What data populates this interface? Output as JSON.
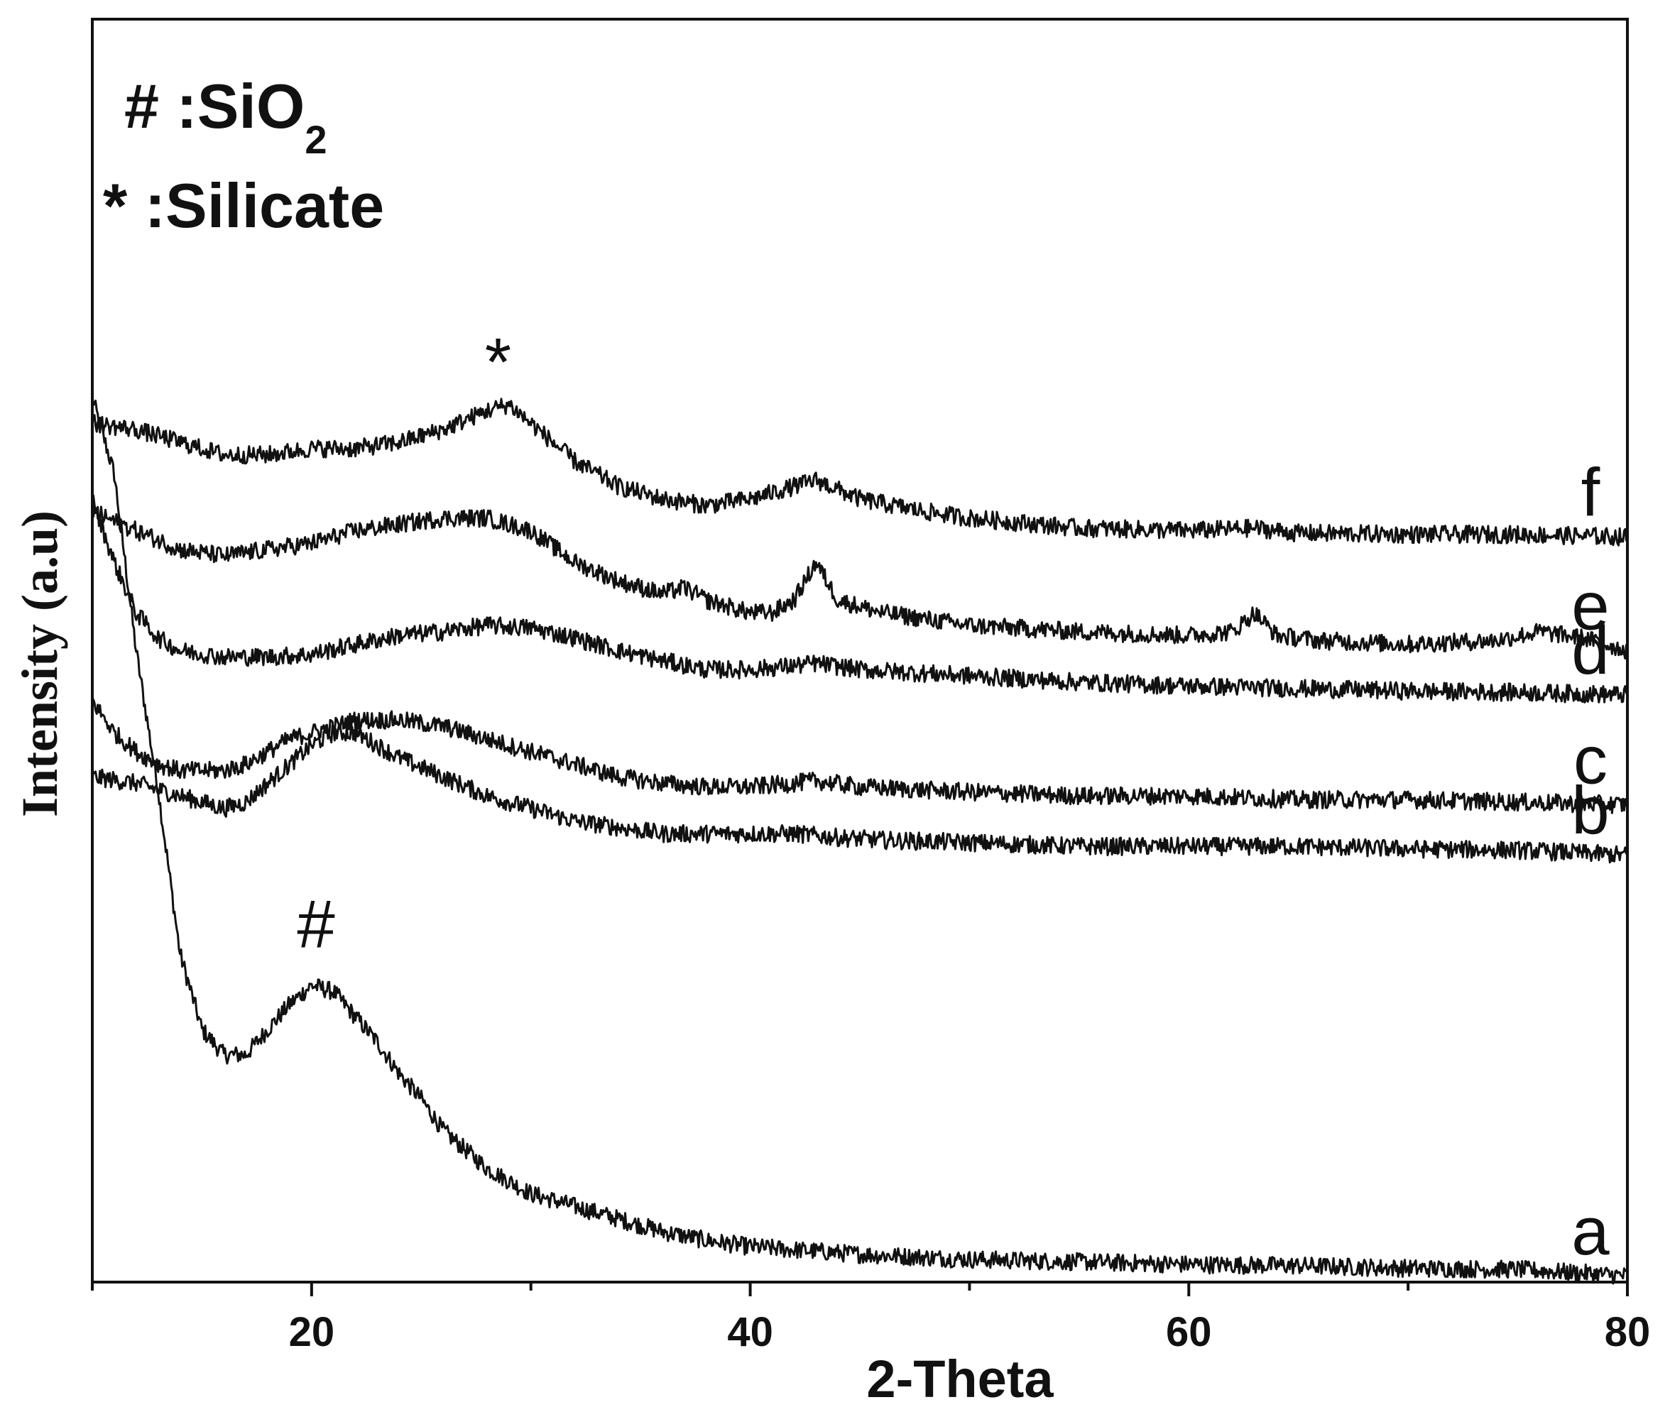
{
  "chart_data": {
    "type": "line",
    "xlabel": "2-Theta",
    "ylabel": "Intensity (a.u)",
    "xlim": [
      10,
      80
    ],
    "ylim": [
      0,
      10
    ],
    "xticks": [
      20,
      40,
      60,
      80
    ],
    "minor_xticks": [
      10,
      30,
      50,
      70
    ],
    "yticks_visible": false,
    "grid": false,
    "legend_lines": [
      {
        "symbol": "#",
        "text": " :SiO",
        "sub": "2"
      },
      {
        "symbol": "*",
        "text": " :Silicate",
        "sub": ""
      }
    ],
    "annotations": [
      {
        "text": "*",
        "x": 28.5,
        "y": 7.1
      },
      {
        "text": "#",
        "x": 20.2,
        "y": 2.65
      }
    ],
    "noise": 0.07,
    "series": [
      {
        "name": "a",
        "points": [
          [
            10,
            7.0
          ],
          [
            11,
            6.4
          ],
          [
            12,
            5.0
          ],
          [
            13,
            3.9
          ],
          [
            14,
            2.6
          ],
          [
            15,
            2.0
          ],
          [
            16,
            1.8
          ],
          [
            17,
            1.8
          ],
          [
            18,
            2.0
          ],
          [
            19,
            2.2
          ],
          [
            20,
            2.35
          ],
          [
            21,
            2.3
          ],
          [
            22,
            2.1
          ],
          [
            23,
            1.9
          ],
          [
            24,
            1.65
          ],
          [
            25,
            1.45
          ],
          [
            26,
            1.2
          ],
          [
            27,
            1.05
          ],
          [
            28,
            0.9
          ],
          [
            29,
            0.8
          ],
          [
            30,
            0.7
          ],
          [
            32,
            0.6
          ],
          [
            34,
            0.5
          ],
          [
            36,
            0.4
          ],
          [
            38,
            0.33
          ],
          [
            40,
            0.28
          ],
          [
            45,
            0.22
          ],
          [
            50,
            0.18
          ],
          [
            55,
            0.16
          ],
          [
            60,
            0.14
          ],
          [
            65,
            0.13
          ],
          [
            70,
            0.11
          ],
          [
            75,
            0.1
          ],
          [
            80,
            0.05
          ]
        ]
      },
      {
        "name": "b",
        "points": [
          [
            10,
            4.0
          ],
          [
            12,
            3.95
          ],
          [
            14,
            3.85
          ],
          [
            16,
            3.75
          ],
          [
            17,
            3.8
          ],
          [
            18,
            3.95
          ],
          [
            19,
            4.1
          ],
          [
            20,
            4.25
          ],
          [
            21,
            4.35
          ],
          [
            22,
            4.35
          ],
          [
            23,
            4.25
          ],
          [
            24,
            4.15
          ],
          [
            26,
            4.0
          ],
          [
            28,
            3.85
          ],
          [
            30,
            3.75
          ],
          [
            32,
            3.65
          ],
          [
            34,
            3.6
          ],
          [
            36,
            3.55
          ],
          [
            38,
            3.55
          ],
          [
            40,
            3.55
          ],
          [
            42,
            3.55
          ],
          [
            44,
            3.52
          ],
          [
            46,
            3.5
          ],
          [
            50,
            3.48
          ],
          [
            55,
            3.45
          ],
          [
            60,
            3.45
          ],
          [
            65,
            3.45
          ],
          [
            70,
            3.43
          ],
          [
            75,
            3.42
          ],
          [
            80,
            3.38
          ]
        ]
      },
      {
        "name": "c",
        "points": [
          [
            10,
            4.6
          ],
          [
            11,
            4.35
          ],
          [
            12,
            4.2
          ],
          [
            13,
            4.1
          ],
          [
            14,
            4.05
          ],
          [
            15,
            4.05
          ],
          [
            16,
            4.05
          ],
          [
            17,
            4.1
          ],
          [
            18,
            4.2
          ],
          [
            19,
            4.3
          ],
          [
            20,
            4.35
          ],
          [
            22,
            4.45
          ],
          [
            24,
            4.45
          ],
          [
            26,
            4.4
          ],
          [
            28,
            4.3
          ],
          [
            30,
            4.2
          ],
          [
            32,
            4.1
          ],
          [
            34,
            4.0
          ],
          [
            36,
            3.95
          ],
          [
            38,
            3.92
          ],
          [
            40,
            3.92
          ],
          [
            42,
            3.95
          ],
          [
            43,
            3.97
          ],
          [
            45,
            3.92
          ],
          [
            50,
            3.88
          ],
          [
            55,
            3.85
          ],
          [
            60,
            3.85
          ],
          [
            65,
            3.82
          ],
          [
            70,
            3.82
          ],
          [
            75,
            3.8
          ],
          [
            80,
            3.78
          ]
        ]
      },
      {
        "name": "d",
        "points": [
          [
            10,
            6.2
          ],
          [
            11,
            5.7
          ],
          [
            12,
            5.3
          ],
          [
            13,
            5.1
          ],
          [
            14,
            5.0
          ],
          [
            16,
            4.95
          ],
          [
            18,
            4.95
          ],
          [
            20,
            4.97
          ],
          [
            22,
            5.05
          ],
          [
            24,
            5.12
          ],
          [
            26,
            5.15
          ],
          [
            28,
            5.2
          ],
          [
            30,
            5.18
          ],
          [
            32,
            5.1
          ],
          [
            34,
            5.0
          ],
          [
            36,
            4.92
          ],
          [
            38,
            4.85
          ],
          [
            40,
            4.85
          ],
          [
            42,
            4.88
          ],
          [
            43,
            4.9
          ],
          [
            45,
            4.85
          ],
          [
            50,
            4.8
          ],
          [
            55,
            4.75
          ],
          [
            60,
            4.72
          ],
          [
            65,
            4.7
          ],
          [
            70,
            4.68
          ],
          [
            75,
            4.67
          ],
          [
            80,
            4.65
          ]
        ]
      },
      {
        "name": "e",
        "points": [
          [
            10,
            6.1
          ],
          [
            12,
            5.95
          ],
          [
            14,
            5.8
          ],
          [
            16,
            5.75
          ],
          [
            18,
            5.8
          ],
          [
            20,
            5.85
          ],
          [
            22,
            5.95
          ],
          [
            24,
            6.0
          ],
          [
            26,
            6.05
          ],
          [
            28,
            6.05
          ],
          [
            30,
            5.95
          ],
          [
            32,
            5.7
          ],
          [
            34,
            5.55
          ],
          [
            36,
            5.45
          ],
          [
            37,
            5.5
          ],
          [
            38,
            5.4
          ],
          [
            40,
            5.3
          ],
          [
            41,
            5.3
          ],
          [
            42,
            5.4
          ],
          [
            43,
            5.7
          ],
          [
            44,
            5.4
          ],
          [
            46,
            5.3
          ],
          [
            50,
            5.2
          ],
          [
            55,
            5.15
          ],
          [
            60,
            5.12
          ],
          [
            62,
            5.15
          ],
          [
            63,
            5.3
          ],
          [
            64,
            5.12
          ],
          [
            66,
            5.08
          ],
          [
            70,
            5.05
          ],
          [
            74,
            5.08
          ],
          [
            76,
            5.15
          ],
          [
            78,
            5.1
          ],
          [
            80,
            5.0
          ]
        ]
      },
      {
        "name": "f",
        "points": [
          [
            10,
            6.8
          ],
          [
            12,
            6.75
          ],
          [
            14,
            6.65
          ],
          [
            16,
            6.55
          ],
          [
            18,
            6.55
          ],
          [
            20,
            6.6
          ],
          [
            22,
            6.6
          ],
          [
            24,
            6.65
          ],
          [
            26,
            6.75
          ],
          [
            28,
            6.9
          ],
          [
            29,
            6.95
          ],
          [
            30,
            6.8
          ],
          [
            32,
            6.5
          ],
          [
            34,
            6.3
          ],
          [
            36,
            6.2
          ],
          [
            38,
            6.15
          ],
          [
            40,
            6.2
          ],
          [
            42,
            6.3
          ],
          [
            43,
            6.35
          ],
          [
            45,
            6.2
          ],
          [
            48,
            6.1
          ],
          [
            50,
            6.05
          ],
          [
            55,
            5.97
          ],
          [
            60,
            5.95
          ],
          [
            63,
            5.97
          ],
          [
            65,
            5.93
          ],
          [
            70,
            5.92
          ],
          [
            75,
            5.92
          ],
          [
            80,
            5.9
          ]
        ]
      }
    ]
  }
}
